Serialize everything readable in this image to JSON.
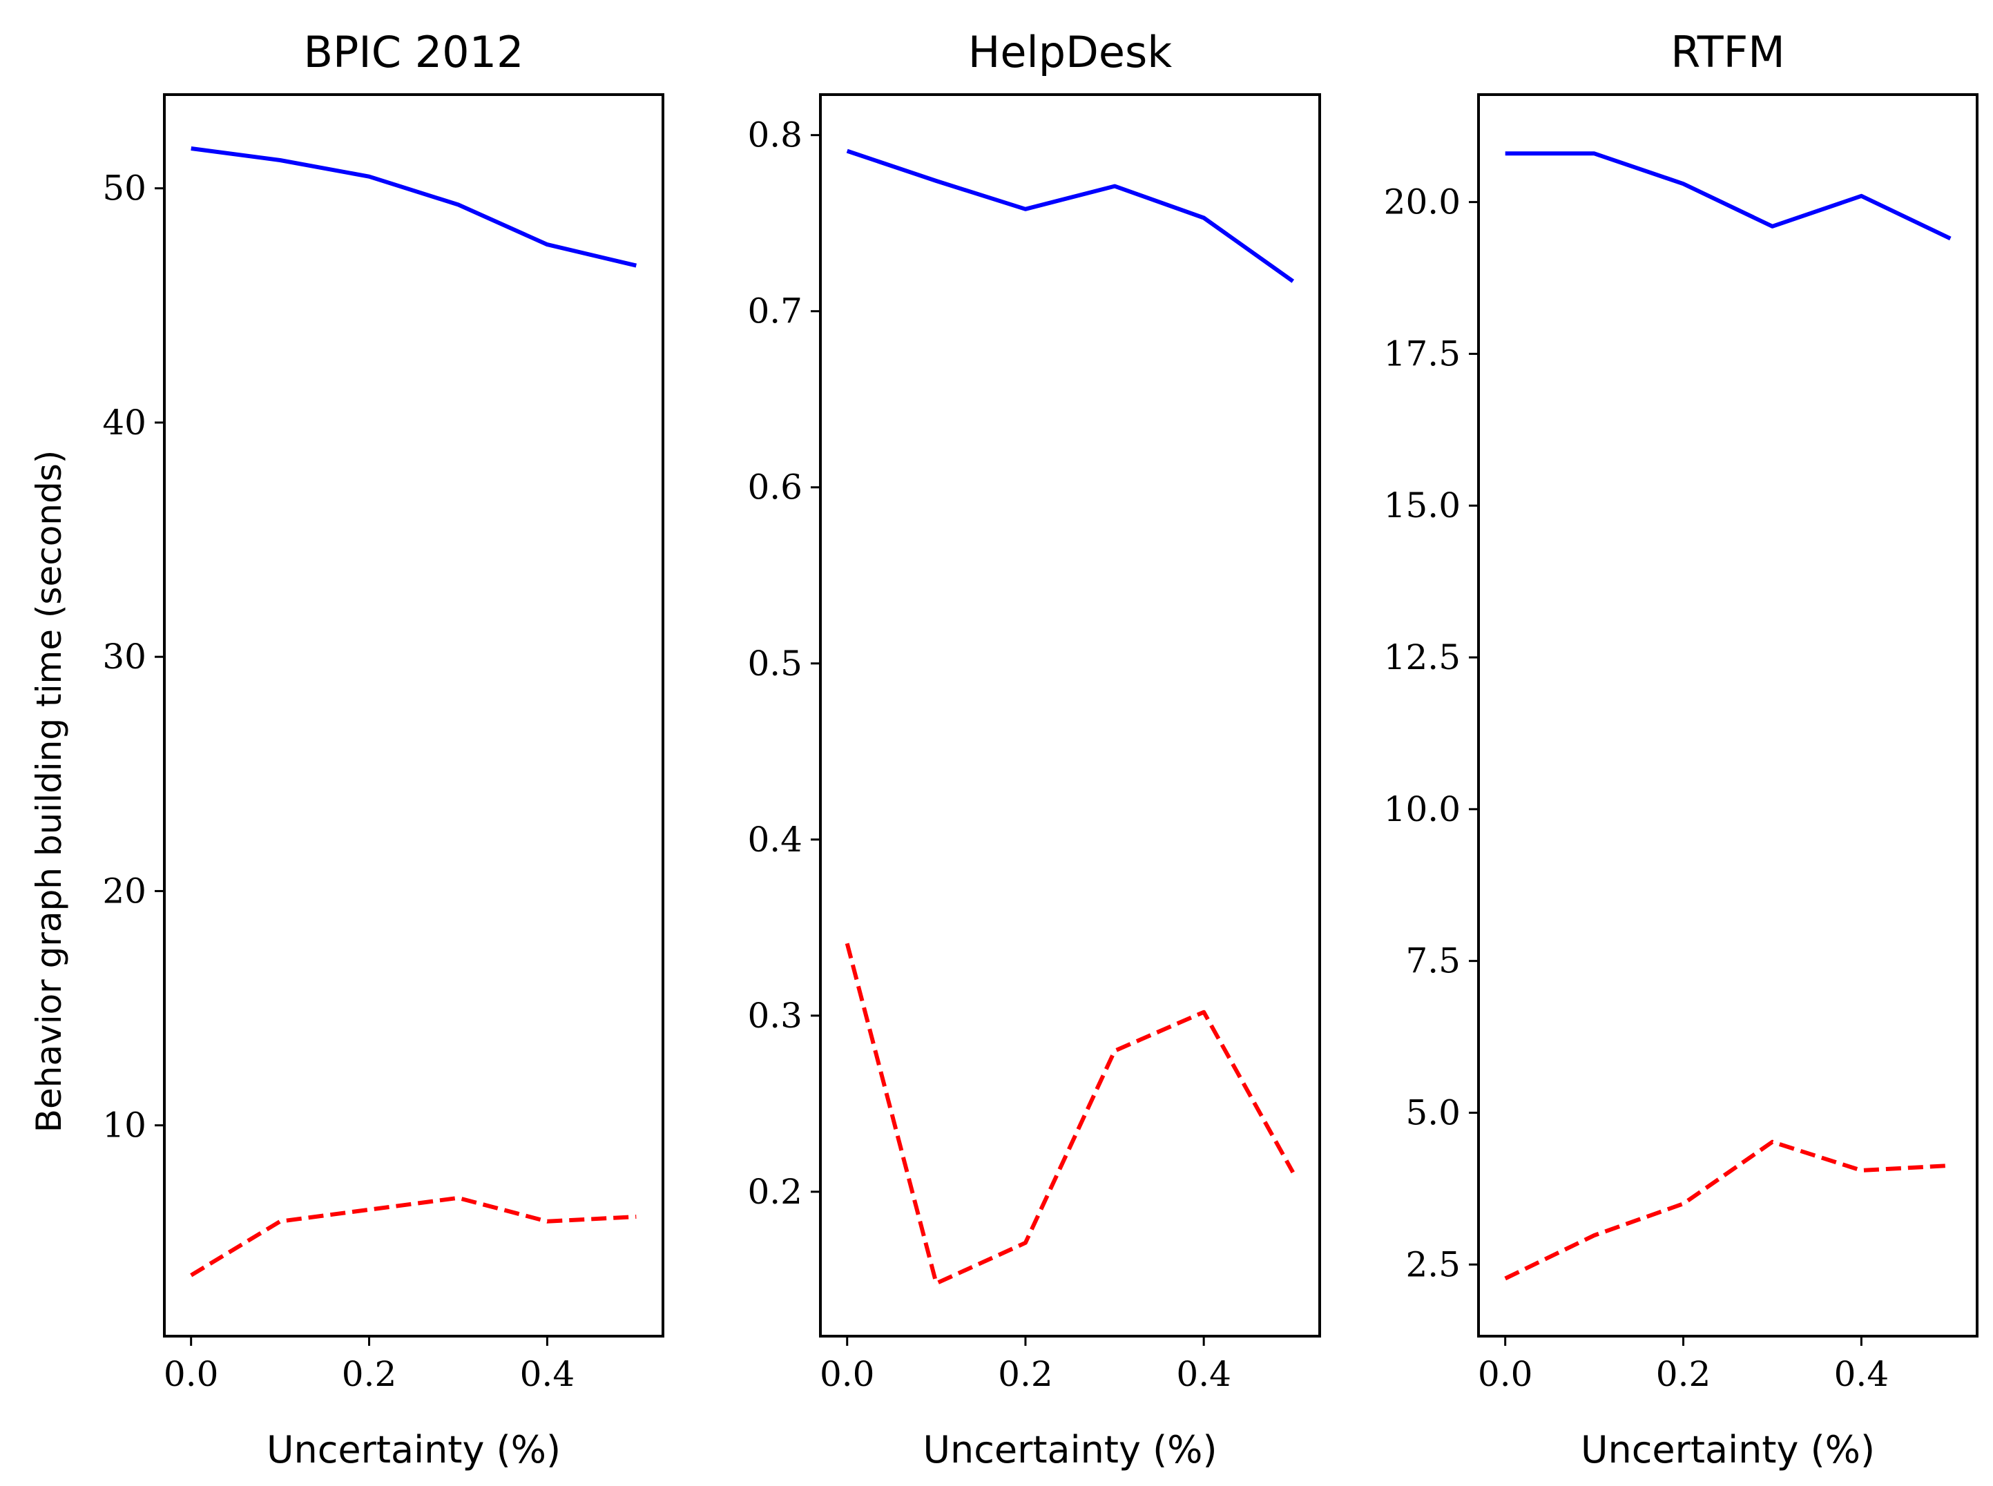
{
  "chart_data": [
    {
      "type": "line",
      "title": "BPIC 2012",
      "xlabel": "Uncertainty (%)",
      "ylabel": "Behavior graph building time (seconds)",
      "x": [
        0.0,
        0.1,
        0.2,
        0.3,
        0.4,
        0.5
      ],
      "xlim": [
        -0.03,
        0.53
      ],
      "ylim": [
        1.0,
        54.0
      ],
      "xticks": [
        "0.0",
        "0.2",
        "0.4"
      ],
      "xtick_values": [
        0.0,
        0.2,
        0.4
      ],
      "yticks": [
        "10",
        "20",
        "30",
        "40",
        "50"
      ],
      "ytick_values": [
        10,
        20,
        30,
        40,
        50
      ],
      "series": [
        {
          "name": "solid-blue",
          "color": "#0000ff",
          "style": "solid",
          "values": [
            51.7,
            51.2,
            50.5,
            49.3,
            47.6,
            46.7
          ]
        },
        {
          "name": "dashed-red",
          "color": "#ff0000",
          "style": "dashed",
          "values": [
            3.6,
            5.9,
            6.4,
            6.9,
            5.9,
            6.1
          ]
        }
      ]
    },
    {
      "type": "line",
      "title": "HelpDesk",
      "xlabel": "Uncertainty (%)",
      "ylabel": "",
      "x": [
        0.0,
        0.1,
        0.2,
        0.3,
        0.4,
        0.5
      ],
      "xlim": [
        -0.03,
        0.53
      ],
      "ylim": [
        0.118,
        0.823
      ],
      "xticks": [
        "0.0",
        "0.2",
        "0.4"
      ],
      "xtick_values": [
        0.0,
        0.2,
        0.4
      ],
      "yticks": [
        "0.2",
        "0.3",
        "0.4",
        "0.5",
        "0.6",
        "0.7",
        "0.8"
      ],
      "ytick_values": [
        0.2,
        0.3,
        0.4,
        0.5,
        0.6,
        0.7,
        0.8
      ],
      "series": [
        {
          "name": "solid-blue",
          "color": "#0000ff",
          "style": "solid",
          "values": [
            0.791,
            0.774,
            0.758,
            0.771,
            0.753,
            0.717
          ]
        },
        {
          "name": "dashed-red",
          "color": "#ff0000",
          "style": "dashed",
          "values": [
            0.341,
            0.148,
            0.171,
            0.28,
            0.302,
            0.211
          ]
        }
      ]
    },
    {
      "type": "line",
      "title": "RTFM",
      "xlabel": "Uncertainty (%)",
      "ylabel": "",
      "x": [
        0.0,
        0.1,
        0.2,
        0.3,
        0.4,
        0.5
      ],
      "xlim": [
        -0.03,
        0.53
      ],
      "ylim": [
        1.32,
        21.77
      ],
      "xticks": [
        "0.0",
        "0.2",
        "0.4"
      ],
      "xtick_values": [
        0.0,
        0.2,
        0.4
      ],
      "yticks": [
        "2.5",
        "5.0",
        "7.5",
        "10.0",
        "12.5",
        "15.0",
        "17.5",
        "20.0"
      ],
      "ytick_values": [
        2.5,
        5.0,
        7.5,
        10.0,
        12.5,
        15.0,
        17.5,
        20.0
      ],
      "series": [
        {
          "name": "solid-blue",
          "color": "#0000ff",
          "style": "solid",
          "values": [
            20.8,
            20.8,
            20.3,
            19.6,
            20.1,
            19.4
          ]
        },
        {
          "name": "dashed-red",
          "color": "#ff0000",
          "style": "dashed",
          "values": [
            2.27,
            2.98,
            3.5,
            4.52,
            4.05,
            4.13
          ]
        }
      ]
    }
  ]
}
